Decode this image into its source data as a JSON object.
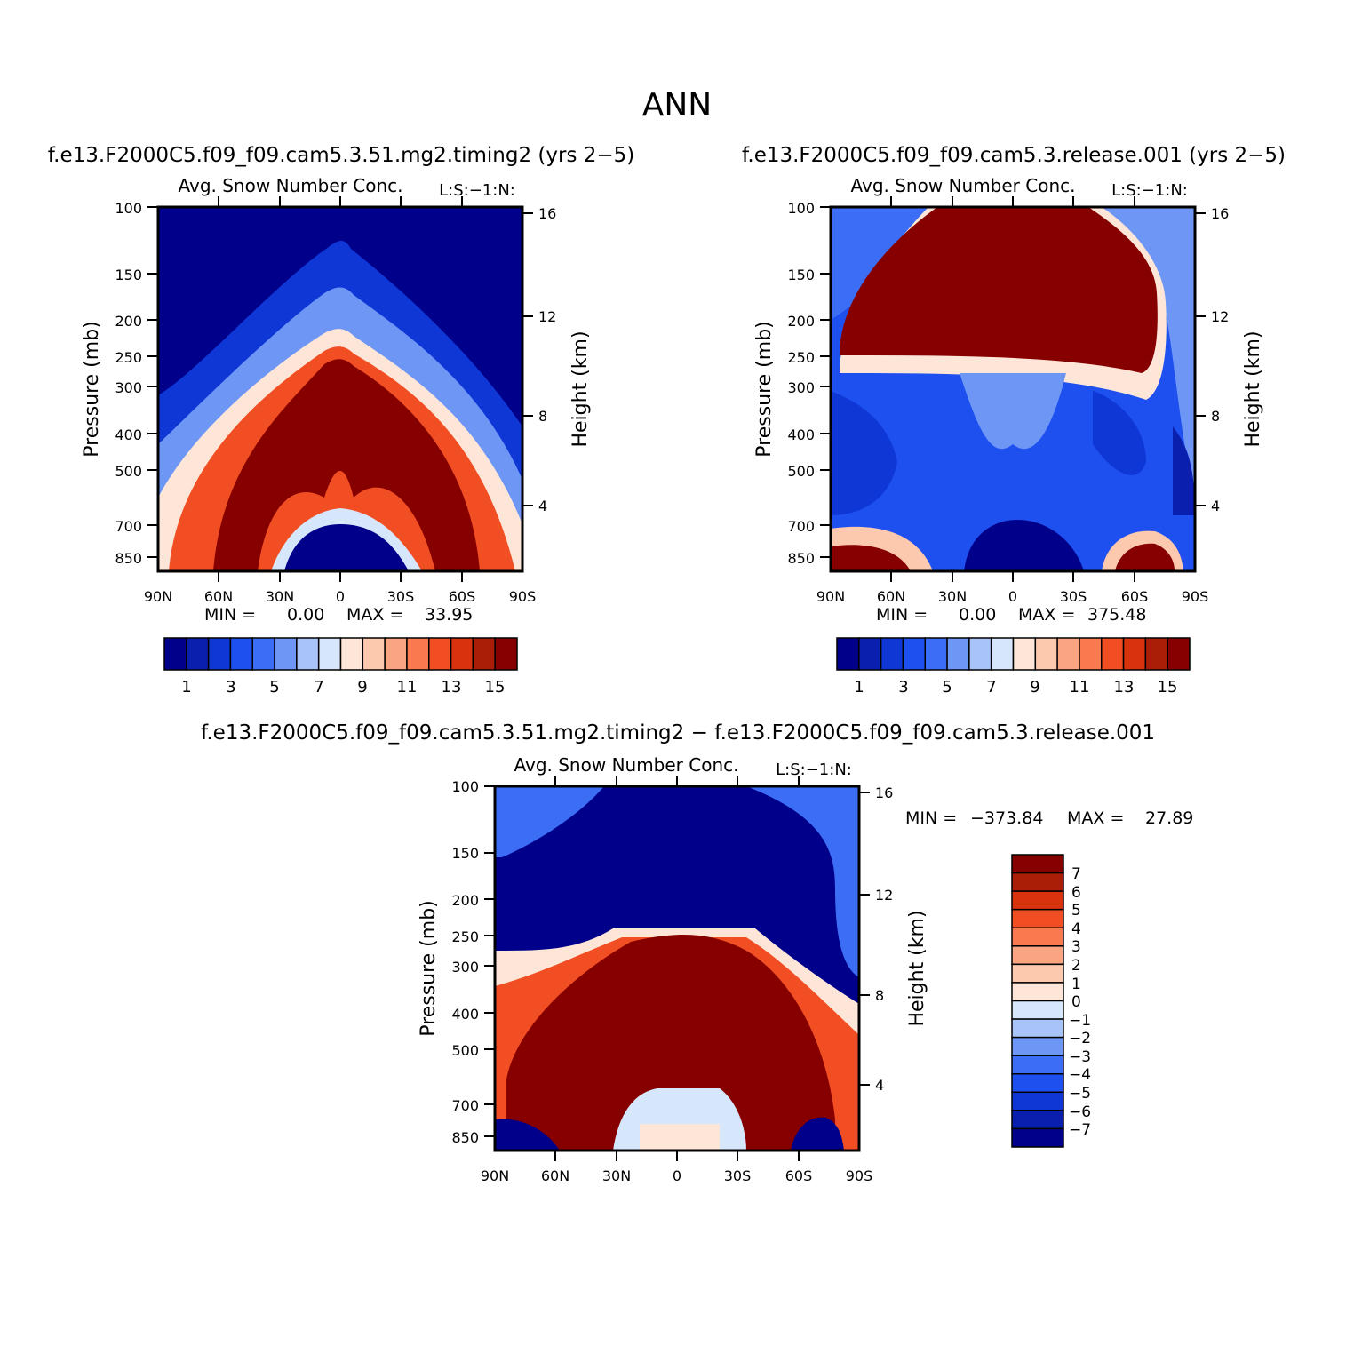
{
  "page_title": "ANN",
  "levels_abs": [
    "1",
    "3",
    "5",
    "7",
    "9",
    "11",
    "13",
    "15"
  ],
  "levels_diff": [
    "7",
    "6",
    "5",
    "4",
    "3",
    "2",
    "1",
    "0",
    "−1",
    "−2",
    "−3",
    "−4",
    "−5",
    "−6",
    "−7"
  ],
  "palette": [
    "#00008a",
    "#0a1fae",
    "#0f37d6",
    "#1e50f0",
    "#3c6ef5",
    "#6e96f5",
    "#a8c3f8",
    "#d6e6fb",
    "#fde6d8",
    "#fcc8ae",
    "#faa482",
    "#f97a4e",
    "#f24e23",
    "#d9320f",
    "#aa1d07",
    "#860000"
  ],
  "chart_data": [
    {
      "id": "panel-top-left",
      "type": "contour",
      "title": "f.e13.F2000C5.f09_f09.cam5.3.51.mg2.timing2 (yrs 2−5)",
      "subtitle": "Avg. Snow Number Conc.",
      "label_right": "L:S:−1:N:",
      "ylabel": "Pressure (mb)",
      "y2label": "Height (km)",
      "x_ticks": [
        "90N",
        "60N",
        "30N",
        "0",
        "30S",
        "60S",
        "90S"
      ],
      "y_ticks": [
        "100",
        "150",
        "200",
        "250",
        "300",
        "400",
        "500",
        "700",
        "850"
      ],
      "y2_ticks": [
        "16",
        "12",
        "8",
        "4"
      ],
      "xlim": [
        "90N",
        "90S"
      ],
      "ylim": [
        100,
        1000
      ],
      "min_label": "MIN =",
      "min_value": "0.00",
      "max_label": "MAX =",
      "max_value": "33.95",
      "colorbar_levels": [
        1,
        2,
        3,
        4,
        5,
        6,
        7,
        8,
        9,
        10,
        11,
        12,
        13,
        14,
        15
      ]
    },
    {
      "id": "panel-top-right",
      "type": "contour",
      "title": "f.e13.F2000C5.f09_f09.cam5.3.release.001 (yrs 2−5)",
      "subtitle": "Avg. Snow Number Conc.",
      "label_right": "L:S:−1:N:",
      "ylabel": "Pressure (mb)",
      "y2label": "Height (km)",
      "x_ticks": [
        "90N",
        "60N",
        "30N",
        "0",
        "30S",
        "60S",
        "90S"
      ],
      "y_ticks": [
        "100",
        "150",
        "200",
        "250",
        "300",
        "400",
        "500",
        "700",
        "850"
      ],
      "y2_ticks": [
        "16",
        "12",
        "8",
        "4"
      ],
      "xlim": [
        "90N",
        "90S"
      ],
      "ylim": [
        100,
        1000
      ],
      "min_label": "MIN =",
      "min_value": "0.00",
      "max_label": "MAX =",
      "max_value": "375.48",
      "colorbar_levels": [
        1,
        2,
        3,
        4,
        5,
        6,
        7,
        8,
        9,
        10,
        11,
        12,
        13,
        14,
        15
      ]
    },
    {
      "id": "panel-bottom",
      "type": "contour",
      "title": "f.e13.F2000C5.f09_f09.cam5.3.51.mg2.timing2 − f.e13.F2000C5.f09_f09.cam5.3.release.001",
      "subtitle": "Avg. Snow Number Conc.",
      "label_right": "L:S:−1:N:",
      "ylabel": "Pressure (mb)",
      "y2label": "Height (km)",
      "x_ticks": [
        "90N",
        "60N",
        "30N",
        "0",
        "30S",
        "60S",
        "90S"
      ],
      "y_ticks": [
        "100",
        "150",
        "200",
        "250",
        "300",
        "400",
        "500",
        "700",
        "850"
      ],
      "y2_ticks": [
        "16",
        "12",
        "8",
        "4"
      ],
      "xlim": [
        "90N",
        "90S"
      ],
      "ylim": [
        100,
        1000
      ],
      "min_label": "MIN =",
      "min_value": "−373.84",
      "max_label": "MAX =",
      "max_value": "27.89",
      "colorbar_levels": [
        7,
        6,
        5,
        4,
        3,
        2,
        1,
        0,
        -1,
        -2,
        -3,
        -4,
        -5,
        -6,
        -7
      ]
    }
  ]
}
